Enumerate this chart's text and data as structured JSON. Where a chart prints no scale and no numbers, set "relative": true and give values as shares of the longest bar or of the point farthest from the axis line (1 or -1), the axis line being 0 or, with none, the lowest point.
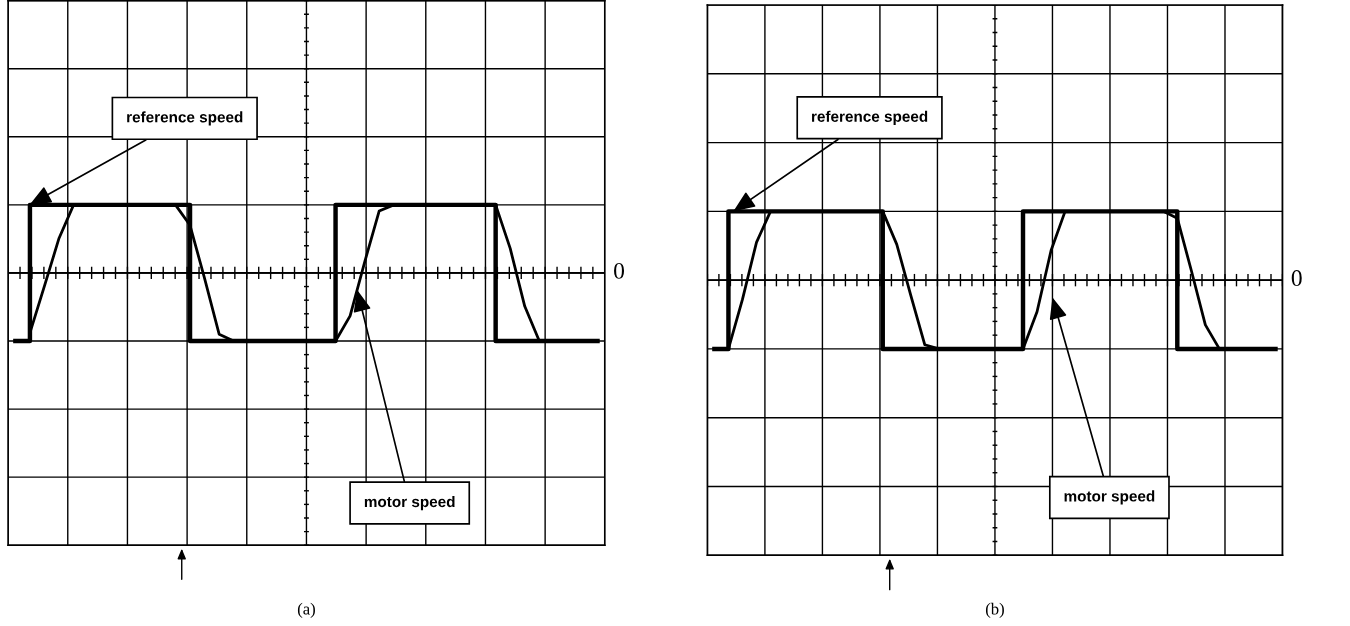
{
  "chart_data": [
    {
      "type": "line",
      "relative": true,
      "xlabel": "(a)",
      "grid": true,
      "line_style": "solid",
      "categories": [
        null,
        null,
        null,
        null,
        null,
        null,
        null,
        null,
        null,
        null,
        null,
        null,
        null,
        null,
        null,
        null,
        null,
        null,
        null,
        null,
        null,
        null,
        null,
        null,
        null,
        null,
        null,
        null,
        null,
        null,
        null,
        null,
        null,
        null,
        null,
        null,
        null,
        null,
        null,
        null,
        null
      ],
      "series": [
        {
          "type": "step",
          "color": "#000000",
          "values": [
            -1,
            1,
            1,
            1,
            1,
            1,
            1,
            1,
            1,
            1,
            1,
            1,
            -1,
            -1,
            -1,
            -1,
            -1,
            -1,
            -1,
            -1,
            -1,
            -1,
            1,
            1,
            1,
            1,
            1,
            1,
            1,
            1,
            1,
            1,
            1,
            -1,
            -1,
            -1,
            -1,
            -1,
            -1,
            -1,
            -1
          ]
        },
        {
          "color": "#000000",
          "values": [
            null,
            -0.88,
            -0.19,
            0.51,
            1,
            1,
            1,
            1,
            1,
            1,
            1,
            1,
            0.7,
            -0.08,
            -0.9,
            -1,
            -1,
            -1,
            -1,
            -1,
            -1,
            -1,
            -1,
            -0.63,
            0.16,
            0.91,
            1,
            1,
            1,
            1,
            1,
            1,
            1,
            1,
            0.36,
            -0.49,
            -1,
            -1,
            -1,
            -1,
            -1
          ]
        }
      ],
      "ref_lines": [
        {
          "axis": "y",
          "value": 0,
          "label": "0"
        }
      ],
      "annotations": [
        "reference speed",
        "motor speed"
      ]
    },
    {
      "type": "line",
      "relative": true,
      "xlabel": "(b)",
      "grid": true,
      "line_style": "solid",
      "categories": [
        null,
        null,
        null,
        null,
        null,
        null,
        null,
        null,
        null,
        null,
        null,
        null,
        null,
        null,
        null,
        null,
        null,
        null,
        null,
        null,
        null,
        null,
        null,
        null,
        null,
        null,
        null,
        null,
        null,
        null,
        null,
        null,
        null,
        null,
        null,
        null,
        null,
        null,
        null,
        null,
        null
      ],
      "series": [
        {
          "type": "step",
          "color": "#000000",
          "values": [
            -1,
            1,
            1,
            1,
            1,
            1,
            1,
            1,
            1,
            1,
            1,
            1,
            -1,
            -1,
            -1,
            -1,
            -1,
            -1,
            -1,
            -1,
            -1,
            -1,
            1,
            1,
            1,
            1,
            1,
            1,
            1,
            1,
            1,
            1,
            1,
            -1,
            -1,
            -1,
            -1,
            -1,
            -1,
            -1,
            -1
          ]
        },
        {
          "color": "#000000",
          "values": [
            -1,
            -1,
            -0.28,
            0.55,
            1,
            1,
            1,
            1,
            1,
            1,
            1,
            1,
            1,
            0.52,
            -0.22,
            -0.94,
            -1,
            -1,
            -1,
            -1,
            -1,
            -1,
            -1,
            -0.46,
            0.43,
            1,
            1,
            1,
            1,
            1,
            1,
            1,
            1,
            0.9,
            0.14,
            -0.65,
            -1,
            -1,
            -1,
            -1,
            -1
          ]
        }
      ],
      "ref_lines": [
        {
          "axis": "y",
          "value": 0,
          "label": "0"
        }
      ],
      "annotations": [
        "reference speed",
        "motor speed"
      ]
    }
  ]
}
